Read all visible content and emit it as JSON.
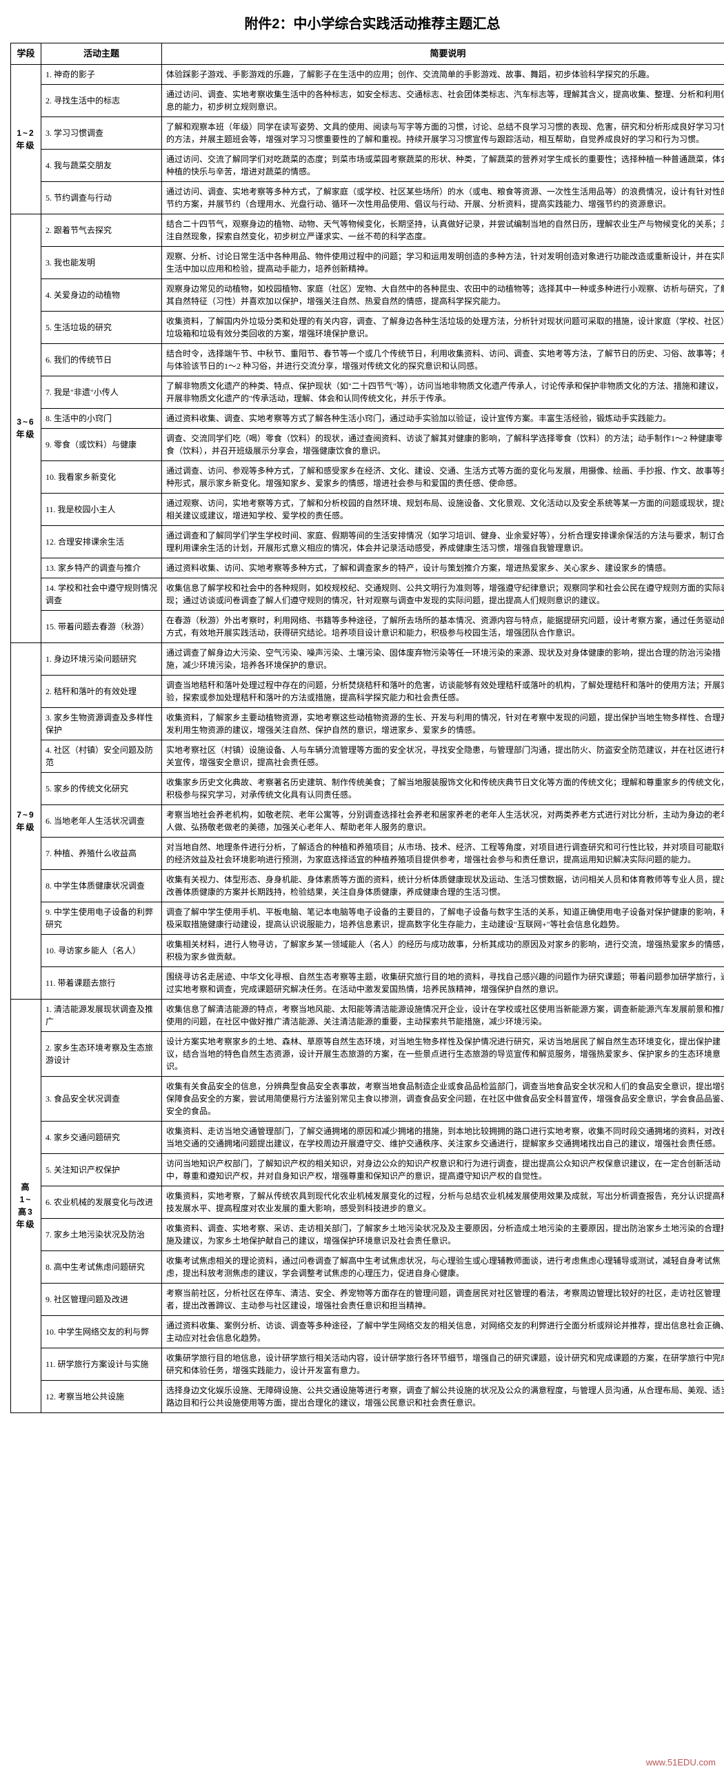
{
  "title": "附件2：中小学综合实践活动推荐主题汇总",
  "headers": {
    "stage": "学段",
    "topic": "活动主题",
    "desc": "简要说明"
  },
  "watermark": "www.51EDU.com",
  "sections": [
    {
      "stage": "1~2\n年级",
      "rows": [
        {
          "t": "1. 神奇的影子",
          "d": "体验踩影子游戏、手影游戏的乐趣，了解影子在生活中的应用；创作、交流简单的手影游戏、故事、舞蹈，初步体验科学探究的乐趣。"
        },
        {
          "t": "2. 寻找生活中的标志",
          "d": "通过访问、调查、实地考察收集生活中的各种标志，如安全标志、交通标志、社会团体类标志、汽车标志等，理解其含义，提高收集、整理、分析和利用信息的能力，初步树立规则意识。"
        },
        {
          "t": "3. 学习习惯调查",
          "d": "了解和观察本班（年级）同学在读写姿势、文具的使用、阅读与写字等方面的习惯，讨论、总结不良学习习惯的表现、危害，研究和分析形成良好学习习惯的方法，并展主题班会等，增强对学习习惯重要性的了解和重视。持续开展学习习惯宣传与跟踪活动，相互帮助，自觉养成良好的学习和行为习惯。"
        },
        {
          "t": "4. 我与蔬菜交朋友",
          "d": "通过访问、交流了解同学们对吃蔬菜的态度；到菜市场或菜园考察蔬菜的形状、种类，了解蔬菜的营养对学生成长的重要性；选择种植一种普通蔬菜，体会种植的快乐与辛苦，增进对蔬菜的情感。"
        },
        {
          "t": "5. 节约调查与行动",
          "d": "通过访问、调查、实地考察等多种方式，了解家庭（或学校、社区某些场所）的水（或电、粮食等资源、一次性生活用品等）的浪费情况，设计有针对性的节约方案，并展节约（合理用水、光盘行动、循环一次性用品使用、倡议与行动、开展、分析资料，提高实践能力、增强节约的资源意识。"
        }
      ]
    },
    {
      "stage": "3~6\n年级",
      "rows": [
        {
          "t": "2. 跟着节气去探究",
          "d": "结合二十四节气，观察身边的植物、动物、天气等物候变化，长期坚持，认真做好记录，并尝试编制当地的自然日历，理解农业生产与物候变化的关系；关注自然现象，探索自然变化，初步树立严谨求实、一丝不苟的科学态度。"
        },
        {
          "t": "3. 我也能发明",
          "d": "观察、分析、讨论日常生活中各种用品、物件使用过程中的问题；学习和运用发明创造的多种方法，针对发明创造对象进行功能改造或重新设计，并在实际生活中加以应用和检验，提高动手能力，培养创新精神。"
        },
        {
          "t": "4. 关爱身边的动植物",
          "d": "观察身边常见的动植物，如校园植物、家庭（社区）宠物、大自然中的各种昆虫、农田中的动植物等；选择其中一种或多种进行小观察、访析与研究，了解其自然特征（习性）并喜欢加以保护，增强关注自然、热爱自然的情感，提高科学探究能力。"
        },
        {
          "t": "5. 生活垃圾的研究",
          "d": "收集资料，了解国内外垃圾分类和处理的有关内容，调查、了解身边各种生活垃圾的处理方法，分析针对现状问题可采取的措施，设计家庭（学校、社区）垃圾箱和垃圾有效分类回收的方案，增强环境保护意识。"
        },
        {
          "t": "6. 我们的传统节日",
          "d": "结合时令，选择端午节、中秋节、重阳节、春节等一个或几个传统节日，利用收集资料、访问、调查、实地考等方法，了解节日的历史、习俗、故事等；参与体验该节日的1～2 种习俗，并进行交流分享，增强对传统文化的探究意识和认同感。"
        },
        {
          "t": "7. 我是\"非遗\"小传人",
          "d": "了解非物质文化遗产的种类、特点、保护现状（如\"二十四节气\"等），访问当地非物质文化遗产传承人，讨论传承和保护非物质文化的方法、措施和建议，开展非物质文化遗产的\"传承活动，理解、体会和认同传统文化，并乐于传承。"
        },
        {
          "t": "8. 生活中的小窍门",
          "d": "通过资料收集、调查、实地考察等方式了解各种生活小窍门，通过动手实验加以验证，设计宣传方案。丰富生活经验，锻炼动手实践能力。"
        },
        {
          "t": "9. 零食（或饮料）与健康",
          "d": "调查、交流同学们吃（喝）零食（饮料）的现状，通过查阅资料、访谈了解其对健康的影响，了解科学选择零食（饮料）的方法；动手制作1～2 种健康零食（饮料），并召开班级展示分享会，增强健康饮食的意识。"
        },
        {
          "t": "10. 我看家乡新变化",
          "d": "通过调查、访问、参观等多种方式，了解和感受家乡在经济、文化、建设、交通、生活方式等方面的变化与发展，用摄像、绘画、手抄报、作文、故事等多种形式，展示家乡新变化。增强知家乡、爱家乡的情感，增进社会参与和爱国的责任感、使命感。"
        },
        {
          "t": "11. 我是校园小主人",
          "d": "通过观察、访问，实地考察等方式，了解和分析校园的自然环境、规划布局、设施设备、文化景观、文化活动以及安全系统等某一方面的问题或现状，提出相关建议或建议，增进知学校、爱学校的责任感。"
        },
        {
          "t": "12. 合理安排课余生活",
          "d": "通过调查和了解同学们学生学校时间、家庭、假期等间的生活安排情况（如学习培训、健身、业余爱好等），分析合理安排课余保活的方法与要求，制订合理利用课余生活的计划，开展形式意义相应的情况，体会并记录活动感受，养成健康生活习惯，增强自我管理意识。"
        },
        {
          "t": "13. 家乡特产的调查与推介",
          "d": "通过资料收集、访问、实地考察等多种方式，了解和调查家乡的特产，设计与策划推介方案，增进热爱家乡、关心家乡、建设家乡的情感。"
        },
        {
          "t": "14. 学校和社会中遵守规则情况调查",
          "d": "收集信息了解学校和社会中的各种规则，如校规校纪、交通规则、公共文明行为准则等，增强遵守纪律意识；观察同学和社会公民在遵守规则方面的实际表现；通过访谈或问卷调查了解人们遵守规则的情况，针对观察与调查中发现的实际问题，提出提高人们规则意识的建议。"
        },
        {
          "t": "15. 带着问题去春游（秋游）",
          "d": "在春游（秋游）外出考察时，利用网络、书籍等多种途径，了解所去场所的基本情况、资源内容与特点，能据提研究问题，设计考察方案，通过任务驱动的方式，有效地开展实践活动，获得研究结论。培养项目设计意识和能力，积极参与校园生活，增强团队合作意识。"
        }
      ]
    },
    {
      "stage": "7~9\n年级",
      "rows": [
        {
          "t": "1. 身边环境污染问题研究",
          "d": "通过调查了解身边大污染、空气污染、噪声污染、土壤污染、固体废弃物污染等任一环境污染的来源、现状及对身体健康的影响，提出合理的防治污染措施，减少环境污染，培养各环境保护的意识。"
        },
        {
          "t": "2. 秸秆和落叶的有效处理",
          "d": "调查当地秸秆和落叶处理过程中存在的问题，分析焚烧秸秆和落叶的危害，访谈能够有效处理秸秆或落叶的机构，了解处理秸秆和落叶的使用方法；开展实验，探索或参加处理秸秆和落叶的方法或措施，提高科学探究能力和社会责任感。"
        },
        {
          "t": "3. 家乡生物资源调查及多样性保护",
          "d": "收集资料，了解家乡主要动植物资源，实地考察这些动植物资源的生长、开发与利用的情况，针对在考察中发现的问题，提出保护当地生物多样性、合理开发利用生物资源的建议，增强关注自然、保护自然的意识，增进家乡、爱家乡的情感。"
        },
        {
          "t": "4. 社区（村镇）安全问题及防范",
          "d": "实地考察社区（村镇）设施设备、人与车辆分流管理等方面的安全状况，寻找安全隐患，与管理部门沟通，提出防火、防盗安全防范建议，并在社区进行相关宣传，增强安全意识，提高社会责任感。"
        },
        {
          "t": "5. 家乡的传统文化研究",
          "d": "收集家乡历史文化典故、考察著名历史建筑、制作传统美食；了解当地服装服饰文化和传统庆典节日文化等方面的传统文化；理解和尊重家乡的传统文化，积极参与探究学习，对承传统文化具有认同责任感。"
        },
        {
          "t": "6. 当地老年人生活状况调查",
          "d": "考察当地社会养老机构，如敬老院、老年公寓等，分别调查选择社会养老和居家养老的老年人生活状况，对两类养老方式进行对比分析，主动为身边的老年人做、弘扬敬老做老的美德，加强关心老年人、帮助老年人服务的意识。"
        },
        {
          "t": "7. 种植、养殖什么收益高",
          "d": "对当地自然、地理条件进行分析，了解适合的种植和养殖项目；从市场、技术、经济、工程等角度，对项目进行调查研究和可行性比较，并对项目可能取得的经济效益及社会环境影响进行预测，为家庭选择适宜的种植养殖项目提供参考，增强社会参与和责任意识，提高运用知识解决实际问题的能力。"
        },
        {
          "t": "8. 中学生体质健康状况调查",
          "d": "收集有关视力、体型形态、身身机能、身体素质等方面的资料，统计分析体质健康现状及运动、生活习惯数据，访问相关人员和体育教师等专业人员，提出改善体质健康的方案并长期践持，检验结果，关注自身体质健康，养成健康合理的生活习惯。"
        },
        {
          "t": "9. 中学生使用电子设备的利弊研究",
          "d": "调查了解中学生使用手机、平板电脑、笔记本电脑等电子设备的主要目的，了解电子设备与数字生活的关系，知道正确使用电子设备对保护健康的影响，积极采取措施健康行动建设，提高认识说服能力，培养信息素识，提高数字化生存能力，主动建设\"互联网+\"等社会信息化趋势。"
        },
        {
          "t": "10. 寻访家乡能人（名人）",
          "d": "收集相关材料，进行人物寻访，了解家乡某一领域能人（名人）的经历与成功故事，分析其成功的原因及对家乡的影响，进行交流，增强热爱家乡的情感，积极为家乡做贡献。"
        },
        {
          "t": "11. 带着课题去旅行",
          "d": "围绕寻访名走居迹、中华文化寻根、自然生态考察等主题，收集研究旅行目的地的资料，寻找自己感兴趣的问题作为研究课题；带着问题参加研学旅行，通过实地考察和调查，完成课题研究解决任务。在活动中激发爱国热情，培养民族精神，增强保护自然的意识。"
        }
      ]
    },
    {
      "stage": "高1~高3\n年级",
      "rows": [
        {
          "t": "1. 清洁能源发展现状调查及推广",
          "d": "收集信息了解清洁能源的特点，考察当地风能、太阳能等清洁能源设施情况开企业，设计在学校或社区使用当新能源方案，调查新能源汽车发展前景和推广使用的问题，在社区中做好推广清洁能源、关注清洁能源的重要，主动探索共节能措施，减少环境污染。"
        },
        {
          "t": "2. 家乡生态环境考察及生态旅游设计",
          "d": "设计方案实地考察家乡的土地、森林、草原等自然生态环境，对当地生物多样性及保护情况进行研究，采访当地居民了解自然生态环境变化，提出保护建议，结合当地的特色自然生态资源，设计开展生态旅游的方案，在一些景点进行生态旅游的导览宣传和解览服务，增强热爱家乡、保护家乡的生态环境意识。"
        },
        {
          "t": "3. 食品安全状况调查",
          "d": "收集有关食品安全的信息，分辨典型食品安全表事故，考察当地食品制造企业或食品品检监部门，调查当地食品安全状况和人们的食品安全意识，提出增强保障食品安全的方案，尝试用简便易行方法鉴别常见主食以掺测，调查食品安全问题，在社区中做食品安全科普宣传，增强食品安全意识，学会食品品鉴、安全的食品。"
        },
        {
          "t": "4. 家乡交通问题研究",
          "d": "收集资料、走访当地交通管理部门，了解交通拥堵的原因和减少拥堵的措施，到本地比较拥拥的路口进行实地考察，收集不同时段交通拥堵的资料，对改善当地交通的交通拥堵问题提出建议，在学校周边开展遵守交、维护交通秩序、关注家乡交通进行，提解家乡交通拥堵找出自己的建议，增强社会责任感。"
        },
        {
          "t": "5. 关注知识产权保护",
          "d": "访问当地知识产权部门，了解知识产权的相关知识，对身边公众的知识产权意识和行为进行调查，提出提高公众知识产权保意识建议，在一定合创新活动中，尊重和遵知识产权，并对自身知识产权，增强尊重和保知识产的意识，提高遵守知识产权的自觉性。"
        },
        {
          "t": "6. 农业机械的发展变化与改进",
          "d": "收集资料，实地考察，了解从传统农具到现代化农业机械发展变化的过程，分析与总结农业机械发展使用效果及成就，写出分析调查报告，充分认识提高科技发展水平、提高程度对农业发展的重大影响，感受到科技进步的意义。"
        },
        {
          "t": "7. 家乡土地污染状况及防治",
          "d": "收集资料、调查、实地考察、采访、走访相关部门，了解家乡土地污染状况及及主要原因，分析造成土地污染的主要原因，提出防治家乡土地污染的合理措施及建议，为家乡土地保护献自己的建议，增强保护环境意识及社会责任意识。"
        },
        {
          "t": "8. 高中生考试焦虑问题研究",
          "d": "收集考试焦虑相关的理论资料，通过问卷调查了解高中生考试焦虑状况，与心理验生或心理辅教师面谈，进行考虑焦虑心理辅导或测试，减轻自身考试焦虑，提出科放考测焦虑的建议，学会调整考试焦虑的心理压力，促进自身心健康。"
        },
        {
          "t": "9. 社区管理问题及改进",
          "d": "考察当前社区，分析社区在停车、清洁、安全、养宠物等方面存在的管理问题，调查居民对社区管理的看法，考察周边管理比较好的社区，走访社区管理者，提出改善蹄议、主动参与社区建设，增强社会责任意识和担当精神。"
        },
        {
          "t": "10. 中学生网络交友的利与弊",
          "d": "通过资料收集、案例分析、访谈、调查等多种途径，了解中学生网络交友的相关信息，对网络交友的利弊进行全面分析或辩论并推荐，提出信息社会正确、主动应对社会信息化趋势。"
        },
        {
          "t": "11. 研学旅行方案设计与实施",
          "d": "收集研学旅行目的地信息，设计研学旅行相关活动内容，设计研学旅行各环节细节，增强自己的研究课题，设计研究和完成课题的方案，在研学旅行中完成研究和体验任务，增强实践能力，设计开发富有意力。"
        },
        {
          "t": "12. 考察当地公共设施",
          "d": "选择身边文化娱乐设施、无障碍设施、公共交通设施等进行考察，调查了解公共设施的状况及公众的满意程度，与管理人员沟通，从合理布局、美观、适当路边目和行公共设施使用等方面，提出合理化的建议，增强公民意识和社会责任意识。"
        }
      ]
    }
  ]
}
